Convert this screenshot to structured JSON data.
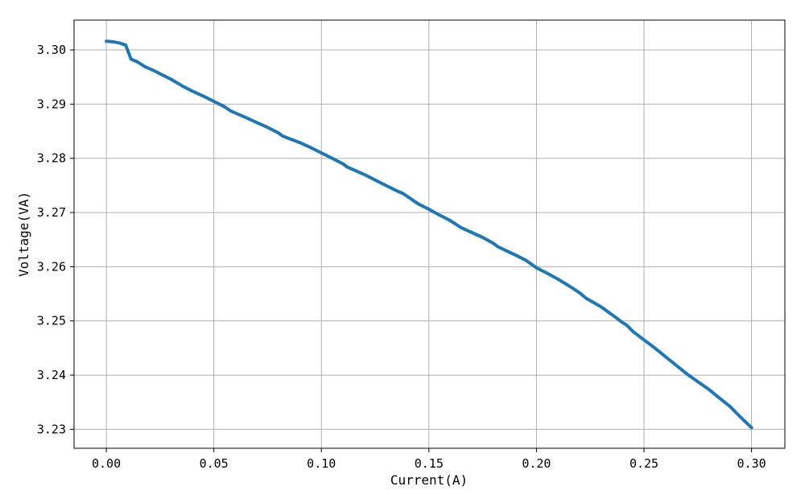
{
  "chart_data": {
    "type": "line",
    "title": "",
    "xlabel": "Current(A)",
    "ylabel": "Voltage(VA)",
    "xlim": [
      -0.015,
      0.3155
    ],
    "ylim": [
      3.2265,
      3.3055
    ],
    "xticks": [
      0.0,
      0.05,
      0.1,
      0.15,
      0.2,
      0.25,
      0.3
    ],
    "xtick_labels": [
      "0.00",
      "0.05",
      "0.10",
      "0.15",
      "0.20",
      "0.25",
      "0.30"
    ],
    "yticks": [
      3.23,
      3.24,
      3.25,
      3.26,
      3.27,
      3.28,
      3.29,
      3.3
    ],
    "ytick_labels": [
      "3.23",
      "3.24",
      "3.25",
      "3.26",
      "3.27",
      "3.28",
      "3.29",
      "3.30"
    ],
    "grid": true,
    "series": [
      {
        "color": "#1f77b4",
        "x": [
          0.0,
          0.003,
          0.006,
          0.009,
          0.0115,
          0.0145,
          0.018,
          0.022,
          0.026,
          0.03,
          0.036,
          0.04,
          0.045,
          0.05,
          0.055,
          0.058,
          0.065,
          0.07,
          0.075,
          0.08,
          0.082,
          0.09,
          0.095,
          0.1,
          0.105,
          0.11,
          0.112,
          0.12,
          0.125,
          0.13,
          0.135,
          0.138,
          0.145,
          0.15,
          0.155,
          0.16,
          0.165,
          0.17,
          0.175,
          0.18,
          0.182,
          0.19,
          0.195,
          0.2,
          0.205,
          0.21,
          0.215,
          0.22,
          0.223,
          0.23,
          0.235,
          0.24,
          0.242,
          0.245,
          0.25,
          0.255,
          0.26,
          0.265,
          0.27,
          0.275,
          0.28,
          0.285,
          0.29,
          0.295,
          0.3
        ],
        "y": [
          3.3016,
          3.3015,
          3.3013,
          3.3009,
          3.2983,
          3.2978,
          3.2969,
          3.2962,
          3.2954,
          3.2946,
          3.2932,
          3.2924,
          3.2915,
          3.2905,
          3.2895,
          3.2887,
          3.2875,
          3.2866,
          3.2857,
          3.2847,
          3.2841,
          3.2829,
          3.282,
          3.281,
          3.28,
          3.279,
          3.2784,
          3.277,
          3.276,
          3.275,
          3.274,
          3.2735,
          3.2716,
          3.2706,
          3.2695,
          3.2685,
          3.2672,
          3.2663,
          3.2654,
          3.2643,
          3.2637,
          3.2622,
          3.2612,
          3.2598,
          3.2588,
          3.2577,
          3.2565,
          3.2552,
          3.2542,
          3.2526,
          3.2512,
          3.2497,
          3.2492,
          3.248,
          3.2465,
          3.245,
          3.2434,
          3.2418,
          3.2402,
          3.2388,
          3.2374,
          3.2358,
          3.2342,
          3.2322,
          3.2303
        ]
      }
    ]
  }
}
